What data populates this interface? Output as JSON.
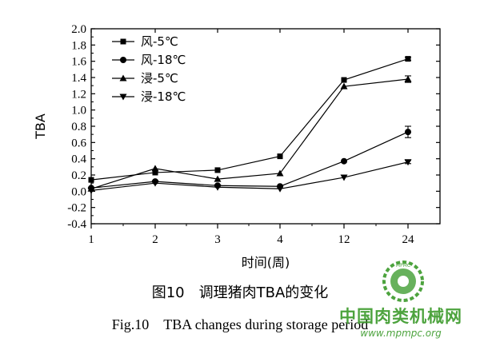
{
  "chart_data": {
    "type": "line",
    "xlabel": "时间(周)",
    "ylabel": "TBA",
    "categories": [
      "1",
      "2",
      "3",
      "4",
      "12",
      "24"
    ],
    "ylim": [
      -0.4,
      2.0
    ],
    "yticks": [
      "-0.4",
      "-0.2",
      "0.0",
      "0.2",
      "0.4",
      "0.6",
      "0.8",
      "1.0",
      "1.2",
      "1.4",
      "1.6",
      "1.8",
      "2.0"
    ],
    "legend_position": "top-left",
    "grid": false,
    "series": [
      {
        "name": "风-5℃",
        "marker": "square",
        "values": [
          0.14,
          0.23,
          0.26,
          0.43,
          1.37,
          1.63
        ],
        "errors": [
          0,
          0,
          0,
          0,
          0,
          0.02
        ]
      },
      {
        "name": "风-18℃",
        "marker": "circle",
        "values": [
          0.04,
          0.12,
          0.07,
          0.06,
          0.37,
          0.73
        ],
        "errors": [
          0,
          0,
          0,
          0,
          0,
          0.07
        ]
      },
      {
        "name": "浸-5℃",
        "marker": "triangle-up",
        "values": [
          0.03,
          0.28,
          0.15,
          0.22,
          1.29,
          1.38
        ],
        "errors": [
          0,
          0,
          0,
          0,
          0,
          0.04
        ]
      },
      {
        "name": "浸-18℃",
        "marker": "triangle-down",
        "values": [
          0.01,
          0.1,
          0.05,
          0.03,
          0.17,
          0.36
        ],
        "errors": [
          0,
          0,
          0,
          0,
          0,
          0.02
        ]
      }
    ]
  },
  "caption": {
    "cn": "图10　调理猪肉TBA的变化",
    "en": "Fig.10　TBA changes during storage period"
  },
  "watermark": {
    "name": "中国肉类机械网",
    "url": "www.mpmpc.org",
    "logo_text": "MPMC",
    "color": "#3a9a2a"
  }
}
